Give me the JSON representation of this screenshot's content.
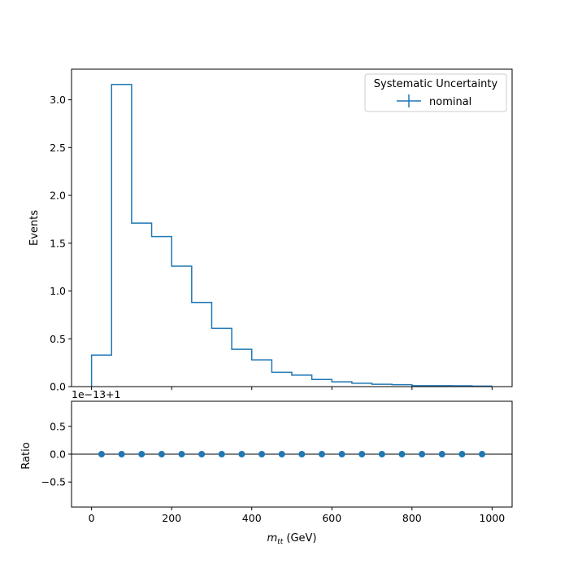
{
  "colors": {
    "series": "#1f77b4",
    "axes": "#000000",
    "background": "#ffffff"
  },
  "chart_data": [
    {
      "type": "histogram",
      "panel": "main",
      "ylabel": "Events",
      "xlim": [
        -50,
        1050
      ],
      "ylim": [
        0,
        3.32
      ],
      "bin_edges": [
        0,
        50,
        100,
        150,
        200,
        250,
        300,
        350,
        400,
        450,
        500,
        550,
        600,
        650,
        700,
        750,
        800,
        850,
        900,
        950,
        1000
      ],
      "series": [
        {
          "name": "nominal",
          "values": [
            0.33,
            3.16,
            1.71,
            1.57,
            1.26,
            0.88,
            0.61,
            0.39,
            0.28,
            0.15,
            0.12,
            0.075,
            0.05,
            0.035,
            0.025,
            0.02,
            0.01,
            0.01,
            0.008,
            0.005
          ]
        }
      ],
      "yticks": [
        0.0,
        0.5,
        1.0,
        1.5,
        2.0,
        2.5,
        3.0
      ],
      "ytick_labels": [
        "0.0",
        "0.5",
        "1.0",
        "1.5",
        "2.0",
        "2.5",
        "3.0"
      ],
      "legend": {
        "title": "Systematic Uncertainty",
        "entries": [
          "nominal"
        ],
        "placement": "upper right"
      }
    },
    {
      "type": "scatter",
      "panel": "ratio",
      "ylabel": "Ratio",
      "xlabel": "m_tt (GeV)",
      "xlabel_parts": {
        "symbol": "m",
        "subscript": "tt",
        "unit": " (GeV)"
      },
      "offset_text": "1e−13+1",
      "xlim": [
        -50,
        1050
      ],
      "ylim": [
        -0.95,
        0.95
      ],
      "x": [
        25,
        75,
        125,
        175,
        225,
        275,
        325,
        375,
        425,
        475,
        525,
        575,
        625,
        675,
        725,
        775,
        825,
        875,
        925,
        975
      ],
      "y": [
        0,
        0,
        0,
        0,
        0,
        0,
        0,
        0,
        0,
        0,
        0,
        0,
        0,
        0,
        0,
        0,
        0,
        0,
        0,
        0
      ],
      "reference_line": 0,
      "xticks": [
        0,
        200,
        400,
        600,
        800,
        1000
      ],
      "xtick_labels": [
        "0",
        "200",
        "400",
        "600",
        "800",
        "1000"
      ],
      "yticks": [
        0.5,
        0.0,
        -0.5
      ],
      "ytick_labels": [
        "0.5",
        "0.0",
        "−0.5"
      ]
    }
  ]
}
